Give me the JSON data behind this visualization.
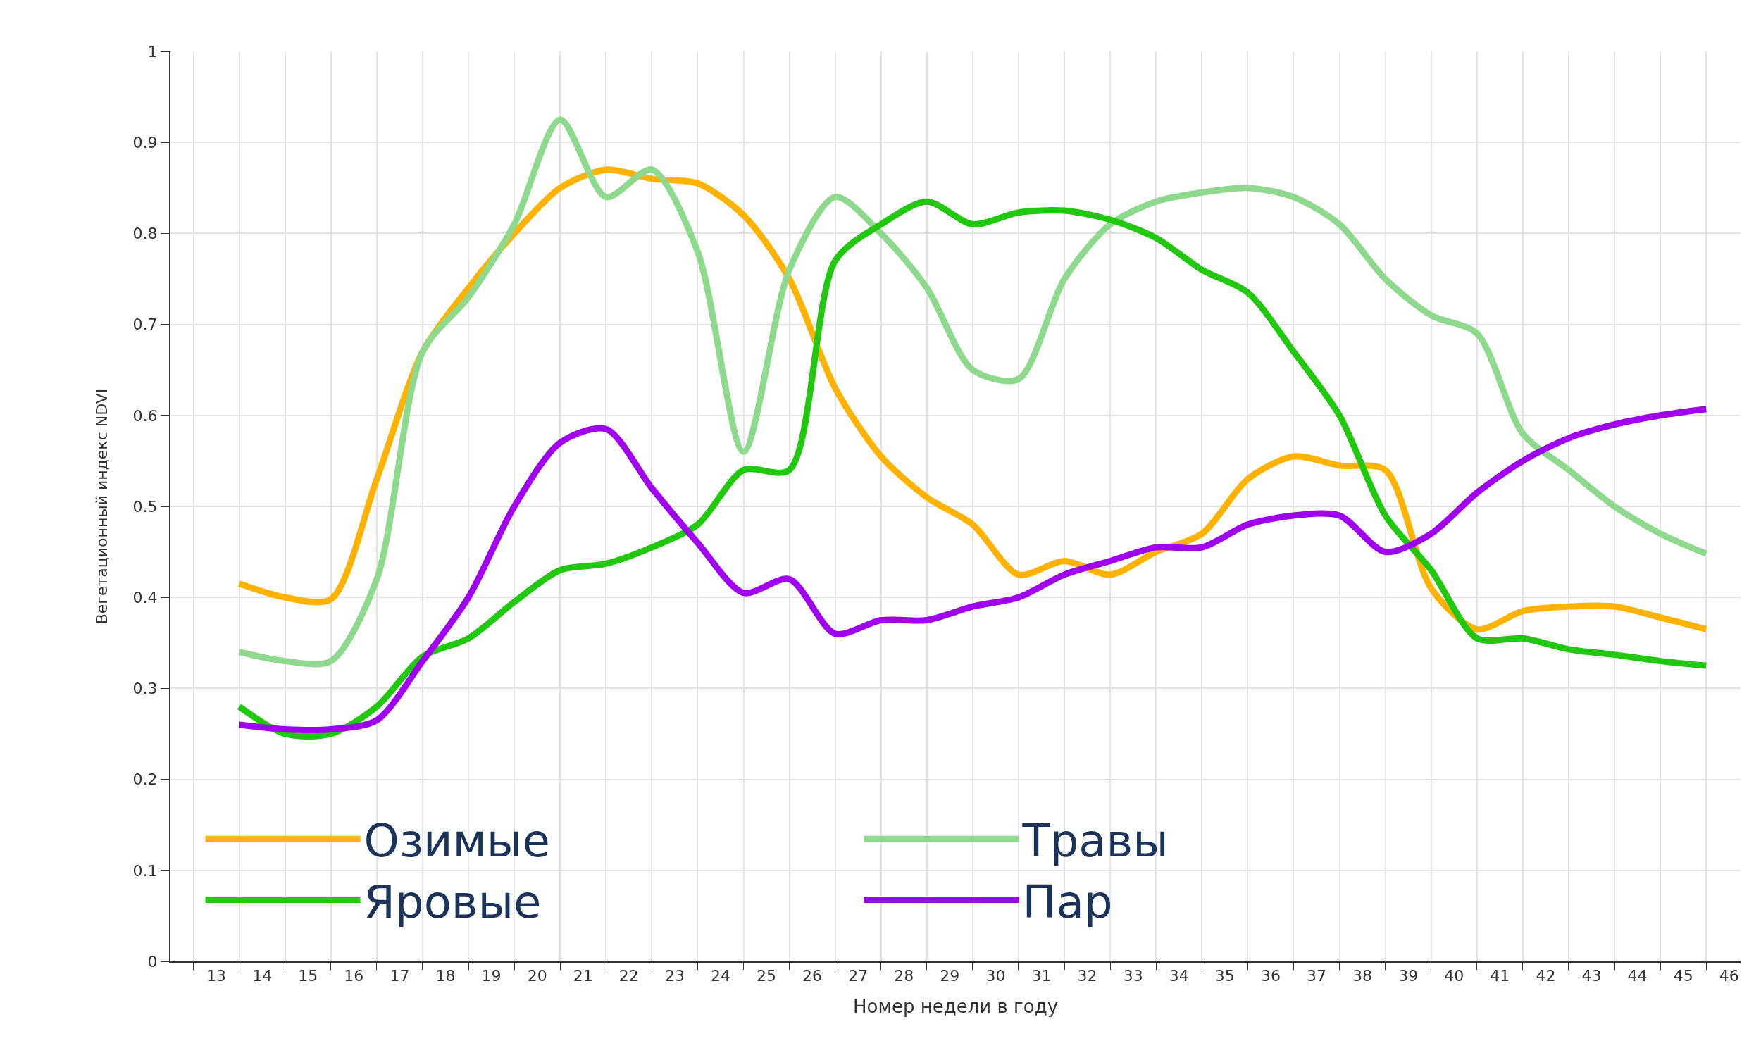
{
  "chart_data": {
    "type": "line",
    "xlabel": "Номер недели в году",
    "ylabel": "Вегетационный индекс NDVI",
    "x": [
      13.5,
      14.5,
      15.5,
      16.5,
      17.5,
      18.5,
      19.5,
      20.5,
      21.5,
      22.5,
      23.5,
      24.5,
      25.5,
      26.5,
      27.5,
      28.5,
      29.5,
      30.5,
      31.5,
      32.5,
      33.5,
      34.5,
      35.5,
      36.5,
      37.5,
      38.5,
      39.5,
      40.5,
      41.5,
      42.5,
      43.5,
      44.5,
      45.5
    ],
    "series": [
      {
        "name": "Озимые",
        "color": "#ffb300",
        "values": [
          0.415,
          0.4,
          0.398,
          0.53,
          0.67,
          0.74,
          0.8,
          0.85,
          0.87,
          0.86,
          0.855,
          0.82,
          0.75,
          0.63,
          0.555,
          0.51,
          0.48,
          0.425,
          0.44,
          0.425,
          0.45,
          0.47,
          0.53,
          0.555,
          0.545,
          0.54,
          0.41,
          0.365,
          0.385,
          0.39,
          0.39,
          0.378,
          0.365
        ]
      },
      {
        "name": "Травы",
        "color": "#8ed98e",
        "values": [
          0.34,
          0.33,
          0.33,
          0.42,
          0.67,
          0.73,
          0.81,
          0.925,
          0.84,
          0.87,
          0.78,
          0.56,
          0.76,
          0.84,
          0.8,
          0.74,
          0.65,
          0.64,
          0.75,
          0.81,
          0.835,
          0.845,
          0.85,
          0.84,
          0.81,
          0.75,
          0.71,
          0.69,
          0.58,
          0.54,
          0.5,
          0.47,
          0.448
        ]
      },
      {
        "name": "Яровые",
        "color": "#22c710",
        "values": [
          0.28,
          0.25,
          0.25,
          0.28,
          0.335,
          0.355,
          0.395,
          0.43,
          0.437,
          0.455,
          0.48,
          0.54,
          0.54,
          0.77,
          0.81,
          0.835,
          0.81,
          0.823,
          0.825,
          0.815,
          0.795,
          0.76,
          0.735,
          0.67,
          0.6,
          0.49,
          0.43,
          0.355,
          0.355,
          0.343,
          0.337,
          0.33,
          0.325
        ]
      },
      {
        "name": "Пар",
        "color": "#a000f0",
        "values": [
          0.26,
          0.255,
          0.255,
          0.265,
          0.33,
          0.4,
          0.5,
          0.57,
          0.585,
          0.52,
          0.46,
          0.405,
          0.42,
          0.36,
          0.375,
          0.375,
          0.39,
          0.4,
          0.425,
          0.44,
          0.455,
          0.455,
          0.48,
          0.49,
          0.49,
          0.45,
          0.47,
          0.515,
          0.55,
          0.575,
          0.59,
          0.6,
          0.607
        ]
      }
    ],
    "xlim": [
      12,
      46.25
    ],
    "xticks": [
      13,
      14,
      15,
      16,
      17,
      18,
      19,
      20,
      21,
      22,
      23,
      24,
      25,
      26,
      27,
      28,
      29,
      30,
      31,
      32,
      33,
      34,
      35,
      36,
      37,
      38,
      39,
      40,
      41,
      42,
      43,
      44,
      45,
      46
    ],
    "ylim": [
      0,
      1
    ],
    "yticks": [
      0,
      0.1,
      0.2,
      0.3,
      0.4,
      0.5,
      0.6,
      0.7,
      0.8,
      0.9,
      1
    ],
    "grid": true,
    "legend": "bottom left",
    "line_style": "solid",
    "marker": "none"
  }
}
